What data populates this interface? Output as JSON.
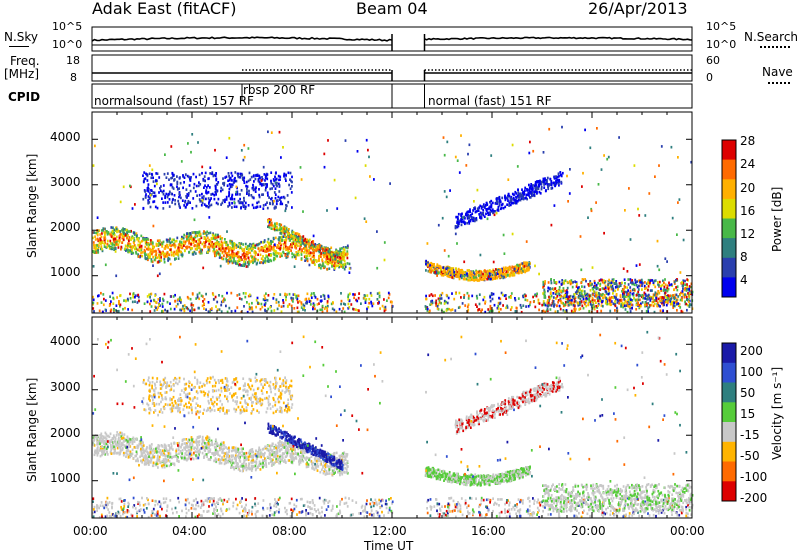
{
  "header": {
    "station": "Adak East (fitACF)",
    "beam": "Beam 04",
    "date": "26/Apr/2013"
  },
  "top_panels": {
    "nsky_label": "N.Sky",
    "nsky_ticks": [
      "10^5",
      "10^0"
    ],
    "nsearch_label": "N.Search",
    "nsearch_ticks": [
      "10^5",
      "10^0"
    ],
    "freq_label": "Freq.",
    "freq_unit": "[MHz]",
    "freq_ticks": [
      "18",
      "8"
    ],
    "nave_label": "Nave",
    "nave_ticks": [
      "60",
      "0"
    ],
    "cpid_label": "CPID",
    "cpid_segments": [
      "normalsound (fast) 157 RF",
      "rbsp 200 RF",
      "normal (fast) 151 RF"
    ]
  },
  "chart_data": [
    {
      "type": "heatmap",
      "name": "power_panel",
      "ylabel": "Slant Range [km]",
      "yticks": [
        "4000",
        "3000",
        "2000",
        "1000"
      ],
      "ylim": [
        180,
        4600
      ],
      "xlim_hours": [
        0,
        24
      ],
      "colorbar_label": "Power [dB]",
      "colorbar_ticks": [
        "28",
        "24",
        "20",
        "16",
        "12",
        "8",
        "4"
      ],
      "colorbar_colors": [
        "#dd0000",
        "#ff6a00",
        "#ffb000",
        "#dcdc00",
        "#48b848",
        "#2f7f7f",
        "#2a3fae",
        "#0000ee"
      ],
      "data_gap_hours": [
        12.0,
        13.3
      ],
      "bands": [
        {
          "t0": 0.0,
          "t1": 10.2,
          "r0": 1500,
          "r1": 2000,
          "level": "high"
        },
        {
          "t0": 2.0,
          "t1": 8.0,
          "r0": 2500,
          "r1": 3200,
          "level": "low"
        },
        {
          "t0": 13.3,
          "t1": 17.5,
          "r0": 1000,
          "r1": 1400,
          "level": "high"
        },
        {
          "t0": 14.5,
          "t1": 18.8,
          "r0": 2200,
          "r1": 3200,
          "level": "low"
        },
        {
          "t0": 18.0,
          "t1": 24.0,
          "r0": 400,
          "r1": 900,
          "level": "mid"
        }
      ]
    },
    {
      "type": "heatmap",
      "name": "velocity_panel",
      "ylabel": "Slant Range [km]",
      "yticks": [
        "4000",
        "3000",
        "2000",
        "1000"
      ],
      "ylim": [
        180,
        4600
      ],
      "xlim_hours": [
        0,
        24
      ],
      "colorbar_label": "Velocity [m s⁻¹]",
      "colorbar_ticks": [
        "200",
        "100",
        "50",
        "15",
        "-15",
        "-50",
        "-100",
        "-200"
      ],
      "colorbar_colors": [
        "#1a1aa8",
        "#2f4fd2",
        "#2f7f7f",
        "#56cc3a",
        "#c8c8c8",
        "#ffb400",
        "#ff6a00",
        "#dd0000"
      ],
      "data_gap_hours": [
        12.0,
        13.3
      ]
    }
  ],
  "xaxis": {
    "ticks": [
      "00:00",
      "04:00",
      "08:00",
      "12:00",
      "16:00",
      "20:00",
      "00:00"
    ],
    "label": "Time UT"
  }
}
